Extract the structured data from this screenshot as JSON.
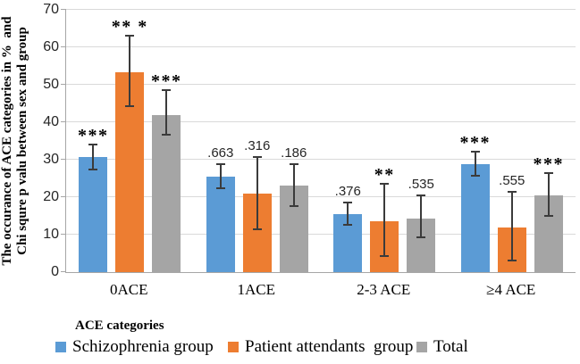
{
  "figure": {
    "y_axis_title": "The occurance of ACE categories in %  and\nChi squre p valu between sex and group",
    "x_axis_title": "ACE categories"
  },
  "chart_data": {
    "type": "bar",
    "title": "",
    "xlabel": "ACE categories",
    "ylabel": "The occurance of ACE categories in % and Chi squre p valu between sex and group",
    "categories": [
      "0ACE",
      "1ACE",
      "2-3 ACE",
      "≥4 ACE"
    ],
    "ylim": [
      0,
      70
    ],
    "yticks": [
      0,
      10,
      20,
      30,
      40,
      50,
      60,
      70
    ],
    "grid": true,
    "legend_position": "bottom",
    "series": [
      {
        "name": "Schizophrenia group",
        "color": "#5B9BD5",
        "values": [
          30.6,
          25.5,
          15.5,
          28.8
        ],
        "error_low": [
          27.2,
          22.1,
          12.4,
          25.5
        ],
        "error_high": [
          34.3,
          29.0,
          18.8,
          32.4
        ],
        "annotations": [
          "***",
          ".663",
          ".376",
          "***"
        ]
      },
      {
        "name": "Patient attendants  group",
        "color": "#ED7D31",
        "values": [
          53.4,
          21.0,
          13.6,
          11.9
        ],
        "error_low": [
          44.0,
          11.2,
          4.0,
          2.9
        ],
        "error_high": [
          63.3,
          31.0,
          23.8,
          21.7
        ],
        "annotations": [
          "** *",
          ".316",
          "**",
          ".555"
        ]
      },
      {
        "name": "Total",
        "color": "#A5A5A5",
        "values": [
          42.0,
          23.1,
          14.3,
          20.5
        ],
        "error_low": [
          36.4,
          17.4,
          9.0,
          14.8
        ],
        "error_high": [
          48.8,
          29.0,
          20.7,
          26.7
        ],
        "annotations": [
          "***",
          ".186",
          ".535",
          "***"
        ]
      }
    ]
  },
  "colors": {
    "grid": "#D9D9D9",
    "axis": "#A6A6A6",
    "error_bar": "#3B3B3B",
    "text": "#000000",
    "tick_text": "#262626"
  }
}
